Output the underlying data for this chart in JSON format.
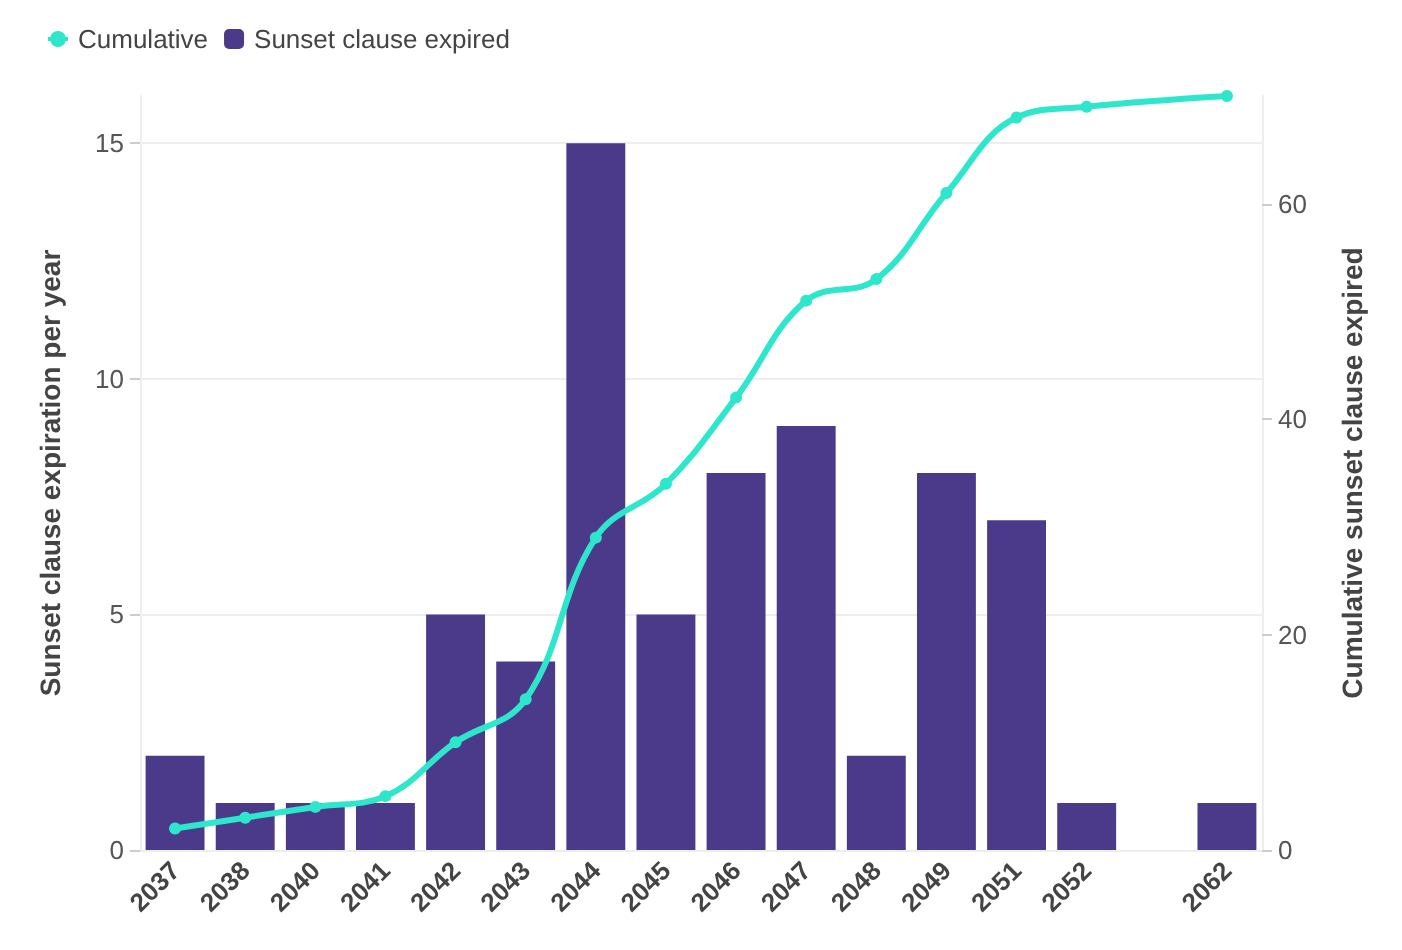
{
  "chart_data": {
    "type": "bar",
    "categories": [
      "2037",
      "2038",
      "2040",
      "2041",
      "2042",
      "2043",
      "2044",
      "2045",
      "2046",
      "2047",
      "2048",
      "2049",
      "2051",
      "2052",
      null,
      "2062"
    ],
    "ylabel": "Sunset clause expiration per year",
    "y2label": "Cumulative sunset clause expired",
    "series": [
      {
        "name": "Cumulative",
        "type": "line",
        "axis": "y2",
        "color": "#2ee6cc",
        "marker": "circle",
        "values": [
          2,
          3,
          4,
          5,
          10,
          14,
          29,
          34,
          42,
          51,
          53,
          61,
          68,
          69,
          null,
          70
        ]
      },
      {
        "name": "Sunset clause expired",
        "color": "#4b3a8a",
        "values": [
          2,
          1,
          1,
          1,
          5,
          4,
          15,
          5,
          8,
          9,
          2,
          8,
          7,
          1,
          null,
          1
        ]
      }
    ],
    "ylim": [
      0,
      16
    ],
    "yticks": [
      0,
      5,
      10,
      15
    ],
    "y2lim": [
      0,
      70
    ],
    "y2ticks": [
      0,
      20,
      40,
      60
    ],
    "grid": "y",
    "legend": "top left"
  }
}
